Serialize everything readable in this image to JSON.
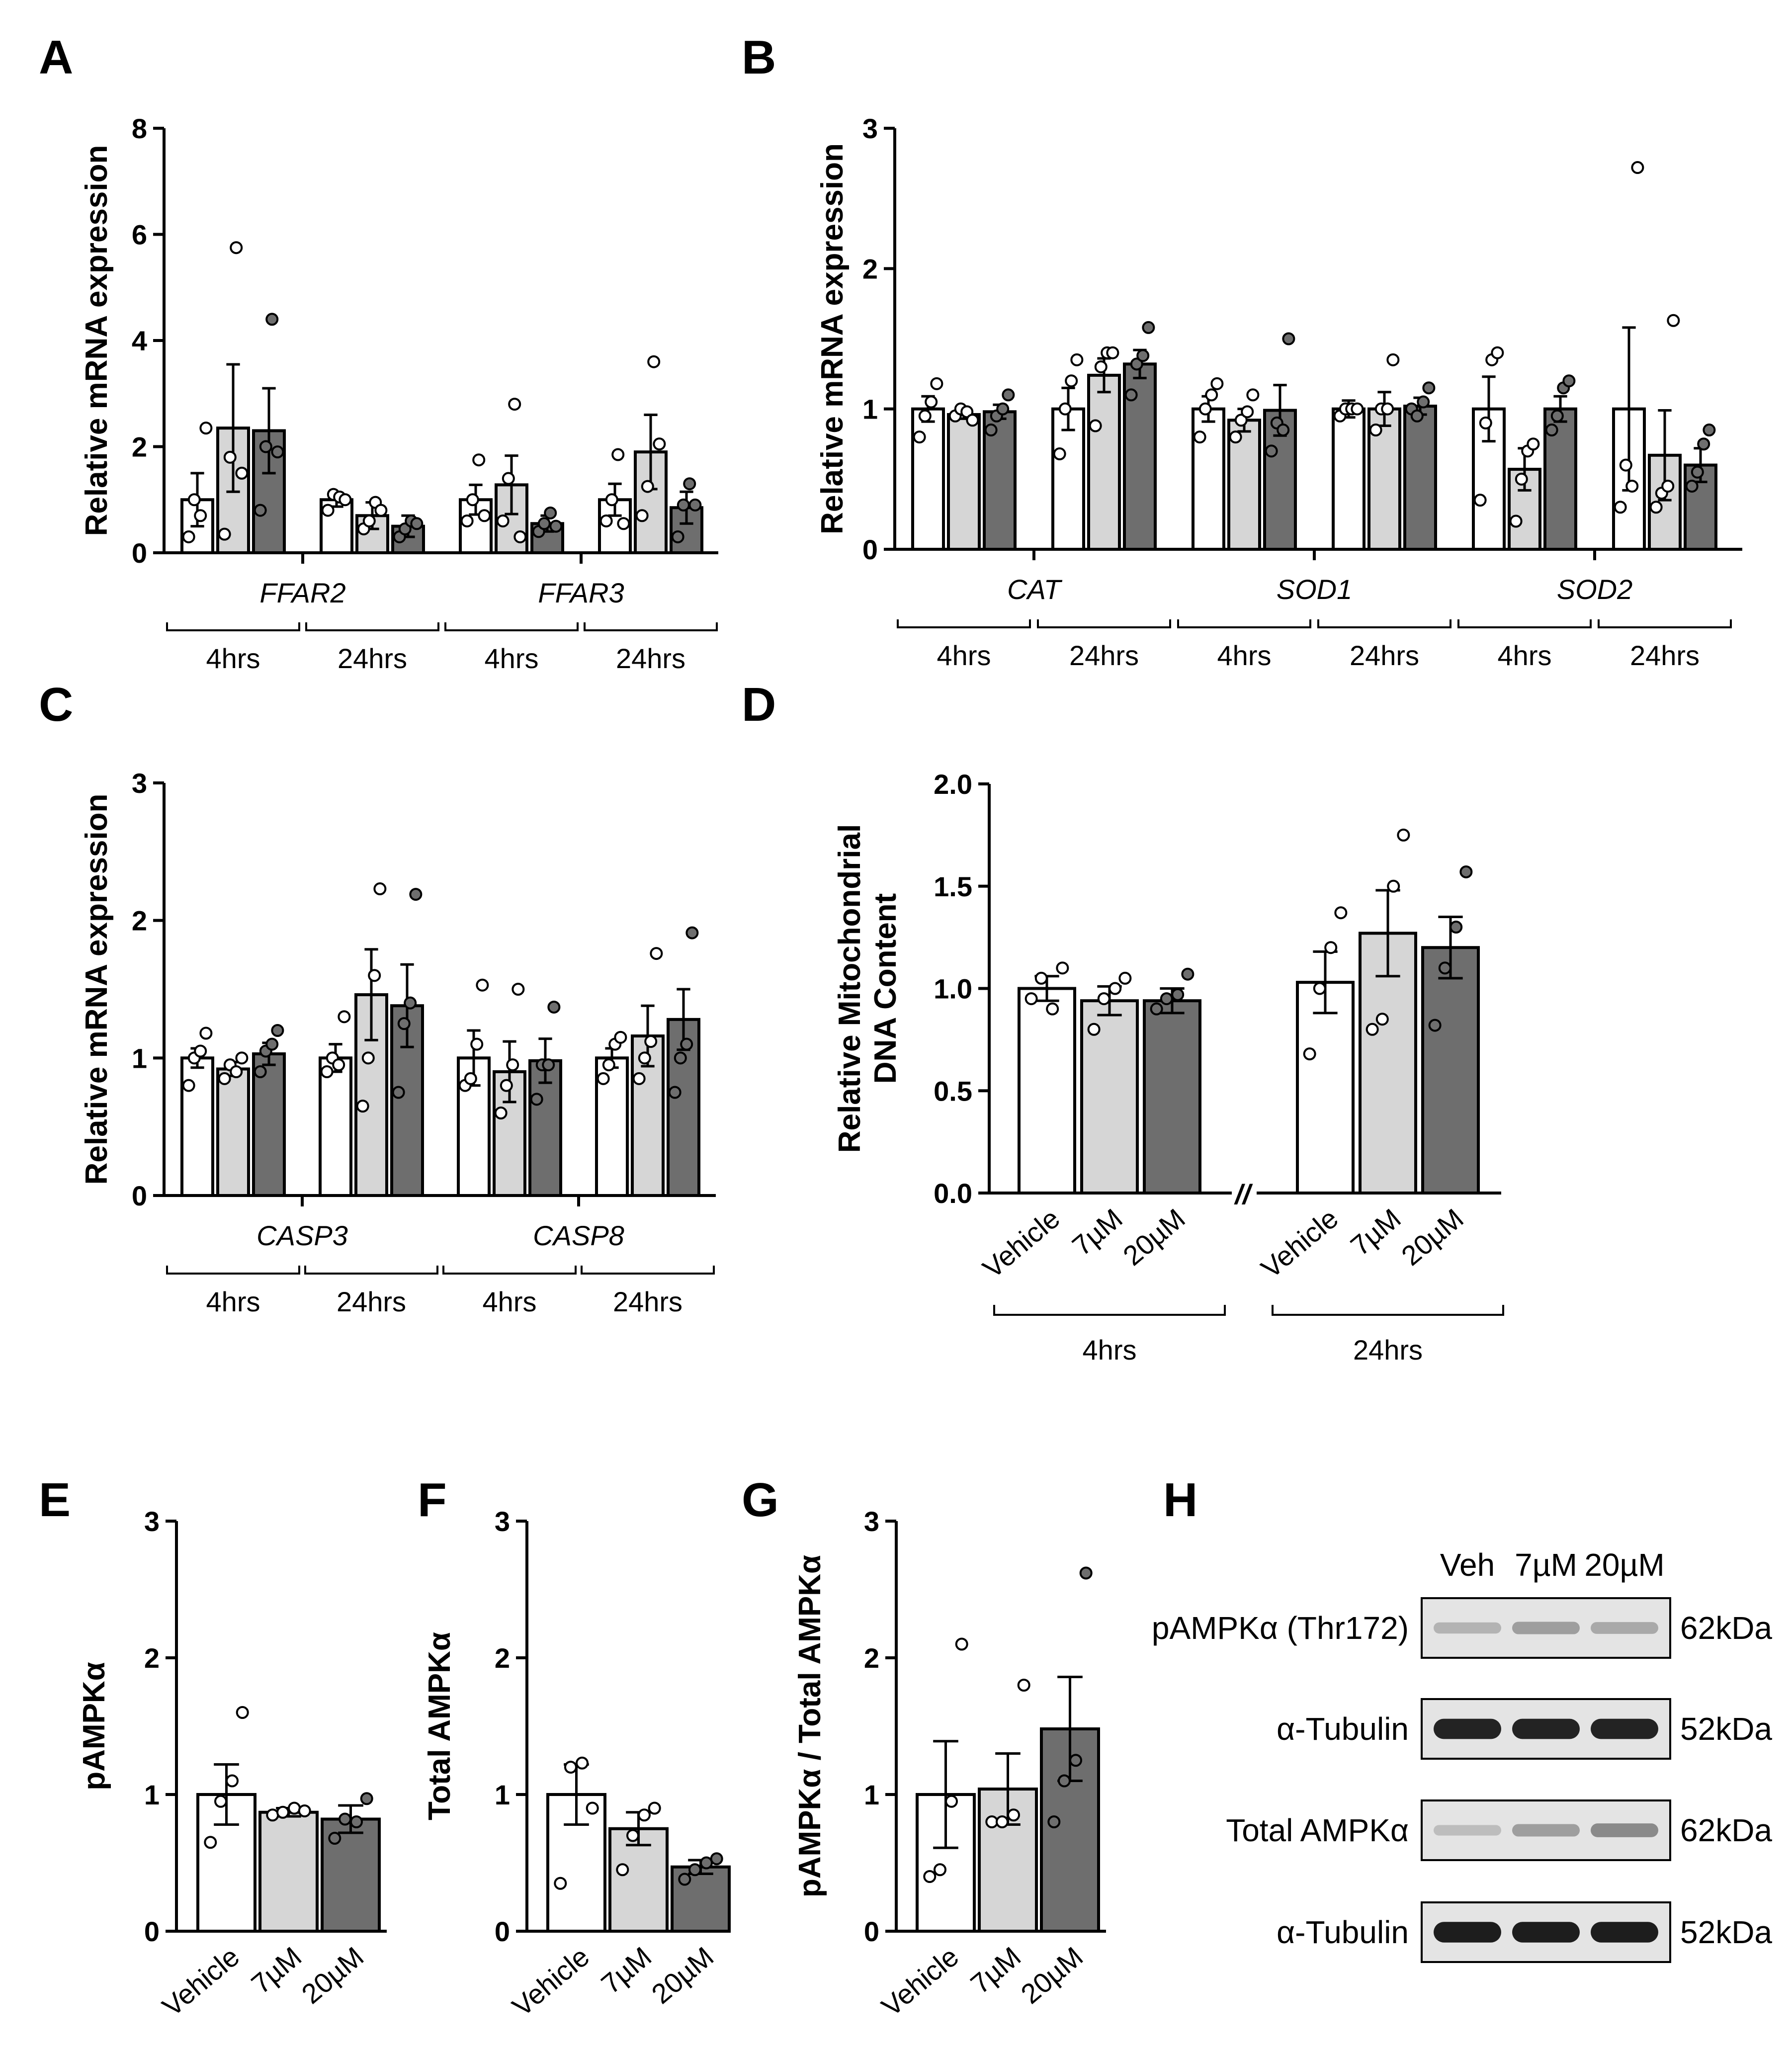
{
  "colors": {
    "vehicle": "#ffffff",
    "c7": "#d6d6d6",
    "c20": "#6e6e6e",
    "axis": "#000000"
  },
  "groups": [
    "Vehicle",
    "7µM",
    "20µM"
  ],
  "chart_data": [
    {
      "panel": "A",
      "type": "bar",
      "ylabel": "Relative mRNA expression",
      "ylim": [
        0,
        8
      ],
      "yticks": [
        "0",
        "2",
        "4",
        "6",
        "8"
      ],
      "genes": [
        "FFAR2",
        "FFAR3"
      ],
      "timepoints": [
        "4hrs",
        "24hrs",
        "4hrs",
        "24hrs"
      ],
      "clusters": [
        {
          "means": [
            1.0,
            2.35,
            2.3
          ],
          "sems": [
            0.5,
            1.2,
            0.8
          ],
          "points": [
            [
              0.3,
              1.0,
              0.7,
              2.35
            ],
            [
              0.35,
              1.8,
              5.75,
              1.5
            ],
            [
              0.8,
              2.0,
              4.4,
              1.9
            ]
          ]
        },
        {
          "means": [
            1.0,
            0.7,
            0.5
          ],
          "sems": [
            0.13,
            0.25,
            0.2
          ],
          "points": [
            [
              0.8,
              1.1,
              1.05,
              1.0
            ],
            [
              0.45,
              0.6,
              0.95,
              0.8
            ],
            [
              0.3,
              0.45,
              0.6,
              0.55
            ]
          ]
        },
        {
          "means": [
            1.0,
            1.28,
            0.55
          ],
          "sems": [
            0.28,
            0.55,
            0.15
          ],
          "points": [
            [
              0.6,
              1.0,
              1.75,
              0.7
            ],
            [
              0.6,
              1.4,
              2.8,
              0.3
            ],
            [
              0.4,
              0.55,
              0.75,
              0.5
            ]
          ]
        },
        {
          "means": [
            1.0,
            1.9,
            0.85
          ],
          "sems": [
            0.3,
            0.7,
            0.3
          ],
          "points": [
            [
              0.6,
              1.0,
              1.85,
              0.55
            ],
            [
              0.7,
              1.25,
              3.6,
              2.05
            ],
            [
              0.3,
              0.9,
              1.3,
              0.9
            ]
          ]
        }
      ]
    },
    {
      "panel": "B",
      "type": "bar",
      "ylabel": "Relative mRNA expression",
      "ylim": [
        0,
        3
      ],
      "yticks": [
        "0",
        "1",
        "2",
        "3"
      ],
      "genes": [
        "CAT",
        "SOD1",
        "SOD2"
      ],
      "timepoints": [
        "4hrs",
        "24hrs",
        "4hrs",
        "24hrs",
        "4hrs",
        "24hrs"
      ],
      "clusters": [
        {
          "means": [
            1.0,
            0.96,
            0.98
          ],
          "sems": [
            0.09,
            0.03,
            0.05
          ],
          "points": [
            [
              0.8,
              0.95,
              1.05,
              1.18
            ],
            [
              0.95,
              1.0,
              0.98,
              0.92
            ],
            [
              0.85,
              0.95,
              1.0,
              1.1
            ]
          ]
        },
        {
          "means": [
            1.0,
            1.24,
            1.32
          ],
          "sems": [
            0.15,
            0.12,
            0.1
          ],
          "points": [
            [
              0.68,
              1.0,
              1.2,
              1.35
            ],
            [
              0.88,
              1.3,
              1.4,
              1.4
            ],
            [
              1.1,
              1.32,
              1.38,
              1.58
            ]
          ]
        },
        {
          "means": [
            1.0,
            0.92,
            0.99
          ],
          "sems": [
            0.09,
            0.08,
            0.18
          ],
          "points": [
            [
              0.8,
              1.0,
              1.1,
              1.18
            ],
            [
              0.8,
              0.92,
              0.98,
              1.1
            ],
            [
              0.7,
              0.9,
              0.85,
              1.5
            ]
          ]
        },
        {
          "means": [
            1.0,
            1.0,
            1.02
          ],
          "sems": [
            0.06,
            0.12,
            0.06
          ],
          "points": [
            [
              0.95,
              1.0,
              1.0,
              1.0
            ],
            [
              0.85,
              1.0,
              1.0,
              1.35
            ],
            [
              1.0,
              0.95,
              1.05,
              1.15
            ]
          ]
        },
        {
          "means": [
            1.0,
            0.57,
            1.0
          ],
          "sems": [
            0.23,
            0.15,
            0.09
          ],
          "points": [
            [
              0.35,
              0.9,
              1.35,
              1.4
            ],
            [
              0.2,
              0.5,
              0.7,
              0.75
            ],
            [
              0.85,
              0.95,
              1.15,
              1.2
            ]
          ]
        },
        {
          "means": [
            1.0,
            0.67,
            0.6
          ],
          "sems": [
            0.58,
            0.32,
            0.12
          ],
          "points": [
            [
              0.3,
              0.6,
              0.45,
              2.72
            ],
            [
              0.3,
              0.4,
              0.45,
              1.63
            ],
            [
              0.45,
              0.55,
              0.75,
              0.85
            ]
          ]
        }
      ]
    },
    {
      "panel": "C",
      "type": "bar",
      "ylabel": "Relative mRNA expression",
      "ylim": [
        0,
        3
      ],
      "yticks": [
        "0",
        "1",
        "2",
        "3"
      ],
      "genes": [
        "CASP3",
        "CASP8"
      ],
      "timepoints": [
        "4hrs",
        "24hrs",
        "4hrs",
        "24hrs"
      ],
      "clusters": [
        {
          "means": [
            1.0,
            0.92,
            1.03
          ],
          "sems": [
            0.07,
            0.05,
            0.08
          ],
          "points": [
            [
              0.8,
              1.0,
              1.05,
              1.18
            ],
            [
              0.85,
              0.95,
              0.9,
              1.0
            ],
            [
              0.9,
              1.05,
              1.1,
              1.2
            ]
          ]
        },
        {
          "means": [
            1.0,
            1.46,
            1.38
          ],
          "sems": [
            0.1,
            0.33,
            0.3
          ],
          "points": [
            [
              0.9,
              1.0,
              0.95,
              1.3
            ],
            [
              0.65,
              1.0,
              1.6,
              2.23
            ],
            [
              0.75,
              1.25,
              1.4,
              2.19
            ]
          ]
        },
        {
          "means": [
            1.0,
            0.9,
            0.98
          ],
          "sems": [
            0.2,
            0.22,
            0.16
          ],
          "points": [
            [
              0.8,
              0.85,
              1.1,
              1.53
            ],
            [
              0.6,
              0.8,
              0.95,
              1.5
            ],
            [
              0.7,
              0.95,
              0.95,
              1.37
            ]
          ]
        },
        {
          "means": [
            1.0,
            1.16,
            1.28
          ],
          "sems": [
            0.07,
            0.22,
            0.22
          ],
          "points": [
            [
              0.85,
              0.95,
              1.1,
              1.15
            ],
            [
              0.85,
              1.0,
              1.12,
              1.76
            ],
            [
              0.75,
              1.0,
              1.1,
              1.91
            ]
          ]
        }
      ]
    },
    {
      "panel": "D",
      "type": "bar",
      "ylabel": [
        "Relative Mitochondrial",
        "DNA Content"
      ],
      "ylim": [
        0,
        2
      ],
      "yticks": [
        "0.0",
        "0.5",
        "1.0",
        "1.5",
        "2.0"
      ],
      "axis_break": "//",
      "timepoints": [
        "4hrs",
        "24hrs"
      ],
      "clusters": [
        {
          "means": [
            1.0,
            0.94,
            0.94
          ],
          "sems": [
            0.06,
            0.07,
            0.06
          ],
          "points": [
            [
              0.95,
              1.05,
              0.9,
              1.1
            ],
            [
              0.8,
              0.95,
              1.0,
              1.05
            ],
            [
              0.9,
              0.95,
              0.97,
              1.07
            ]
          ]
        },
        {
          "means": [
            1.03,
            1.27,
            1.2
          ],
          "sems": [
            0.15,
            0.21,
            0.15
          ],
          "points": [
            [
              0.68,
              1.0,
              1.2,
              1.37
            ],
            [
              0.8,
              0.85,
              1.5,
              1.75
            ],
            [
              0.82,
              1.1,
              1.3,
              1.57
            ]
          ]
        }
      ]
    },
    {
      "panel": "E",
      "type": "bar",
      "ylabel": "pAMPKα",
      "ylim": [
        0,
        3
      ],
      "yticks": [
        "0",
        "1",
        "2",
        "3"
      ],
      "means": [
        1.0,
        0.87,
        0.82
      ],
      "sems": [
        0.22,
        0.03,
        0.1
      ],
      "points": [
        [
          0.65,
          0.95,
          1.1,
          1.6
        ],
        [
          0.85,
          0.87,
          0.9,
          0.88
        ],
        [
          0.68,
          0.82,
          0.8,
          0.97
        ]
      ]
    },
    {
      "panel": "F",
      "type": "bar",
      "ylabel": "Total AMPKα",
      "ylim": [
        0,
        3
      ],
      "yticks": [
        "0",
        "1",
        "2",
        "3"
      ],
      "means": [
        1.0,
        0.75,
        0.47
      ],
      "sems": [
        0.22,
        0.12,
        0.05
      ],
      "points": [
        [
          0.35,
          1.2,
          1.23,
          0.9
        ],
        [
          0.45,
          0.7,
          0.85,
          0.9
        ],
        [
          0.38,
          0.45,
          0.5,
          0.53
        ]
      ]
    },
    {
      "panel": "G",
      "type": "bar",
      "ylabel": "pAMPKα / Total AMPKα",
      "ylim": [
        0,
        3
      ],
      "yticks": [
        "0",
        "1",
        "2",
        "3"
      ],
      "means": [
        1.0,
        1.04,
        1.48
      ],
      "sems": [
        0.39,
        0.26,
        0.38
      ],
      "points": [
        [
          0.4,
          0.45,
          0.95,
          2.1
        ],
        [
          0.8,
          0.8,
          0.85,
          1.8
        ],
        [
          0.8,
          1.1,
          1.25,
          2.62
        ]
      ]
    }
  ],
  "blot": {
    "panel": "H",
    "lanes": [
      "Veh",
      "7µM",
      "20µM"
    ],
    "rows": [
      {
        "label": "pAMPKα (Thr172)",
        "kda": "62kDa",
        "intensity": [
          0.25,
          0.35,
          0.3
        ]
      },
      {
        "label": "α-Tubulin",
        "kda": "52kDa",
        "intensity": [
          0.95,
          0.95,
          0.95
        ]
      },
      {
        "label": "Total AMPKα",
        "kda": "62kDa",
        "intensity": [
          0.2,
          0.35,
          0.45
        ]
      },
      {
        "label": "α-Tubulin",
        "kda": "52kDa",
        "intensity": [
          0.98,
          0.98,
          0.98
        ]
      }
    ]
  }
}
